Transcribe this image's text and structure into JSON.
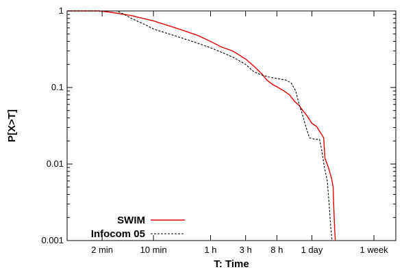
{
  "chart_data": {
    "type": "line",
    "title": "",
    "xlabel": "T: Time",
    "ylabel": "P[X>T]",
    "x_scale": "log",
    "y_scale": "log",
    "x_unit": "seconds",
    "xlim": [
      40,
      1200000
    ],
    "ylim": [
      0.001,
      1
    ],
    "x_ticks": [
      {
        "value": 120,
        "label": "2 min"
      },
      {
        "value": 600,
        "label": "10 min"
      },
      {
        "value": 3600,
        "label": "1 h"
      },
      {
        "value": 10800,
        "label": "3 h"
      },
      {
        "value": 28800,
        "label": "8 h"
      },
      {
        "value": 86400,
        "label": "1 day"
      },
      {
        "value": 604800,
        "label": "1 week"
      }
    ],
    "y_ticks": [
      {
        "value": 1,
        "label": "1"
      },
      {
        "value": 0.1,
        "label": "0.1"
      },
      {
        "value": 0.01,
        "label": "0.01"
      },
      {
        "value": 0.001,
        "label": "0.001"
      }
    ],
    "grid": false,
    "legend_position": "bottom-left",
    "series": [
      {
        "name": "SWIM",
        "color": "#e00000",
        "dash": "solid",
        "points": [
          [
            40,
            1.0
          ],
          [
            110,
            1.0
          ],
          [
            160,
            0.96
          ],
          [
            300,
            0.87
          ],
          [
            600,
            0.74
          ],
          [
            1200,
            0.6
          ],
          [
            2400,
            0.48
          ],
          [
            3600,
            0.4
          ],
          [
            5000,
            0.34
          ],
          [
            7200,
            0.3
          ],
          [
            10800,
            0.235
          ],
          [
            14000,
            0.19
          ],
          [
            18000,
            0.15
          ],
          [
            21000,
            0.125
          ],
          [
            25000,
            0.11
          ],
          [
            30000,
            0.1
          ],
          [
            36000,
            0.09
          ],
          [
            43000,
            0.08
          ],
          [
            50000,
            0.066
          ],
          [
            58000,
            0.058
          ],
          [
            65000,
            0.05
          ],
          [
            75000,
            0.042
          ],
          [
            86400,
            0.034
          ],
          [
            100000,
            0.031
          ],
          [
            115000,
            0.025
          ],
          [
            125000,
            0.022
          ],
          [
            130000,
            0.012
          ],
          [
            145000,
            0.009
          ],
          [
            160000,
            0.0065
          ],
          [
            168000,
            0.005
          ],
          [
            172000,
            0.0025
          ],
          [
            176000,
            0.0015
          ],
          [
            180000,
            0.001
          ]
        ]
      },
      {
        "name": "Infocom 05",
        "color": "#000000",
        "dash": "dashed",
        "points": [
          [
            40,
            1.0
          ],
          [
            190,
            1.0
          ],
          [
            230,
            0.92
          ],
          [
            300,
            0.8
          ],
          [
            450,
            0.67
          ],
          [
            600,
            0.58
          ],
          [
            1200,
            0.47
          ],
          [
            2400,
            0.38
          ],
          [
            3600,
            0.33
          ],
          [
            5000,
            0.29
          ],
          [
            7200,
            0.25
          ],
          [
            10800,
            0.2
          ],
          [
            14000,
            0.16
          ],
          [
            18000,
            0.145
          ],
          [
            24000,
            0.135
          ],
          [
            30000,
            0.13
          ],
          [
            38000,
            0.125
          ],
          [
            45000,
            0.115
          ],
          [
            52000,
            0.09
          ],
          [
            58000,
            0.06
          ],
          [
            64000,
            0.045
          ],
          [
            72000,
            0.03
          ],
          [
            80000,
            0.022
          ],
          [
            95000,
            0.021
          ],
          [
            110000,
            0.021
          ],
          [
            118000,
            0.015
          ],
          [
            128000,
            0.009
          ],
          [
            140000,
            0.006
          ],
          [
            148000,
            0.003
          ],
          [
            156000,
            0.0015
          ],
          [
            163000,
            0.001
          ]
        ]
      }
    ]
  }
}
